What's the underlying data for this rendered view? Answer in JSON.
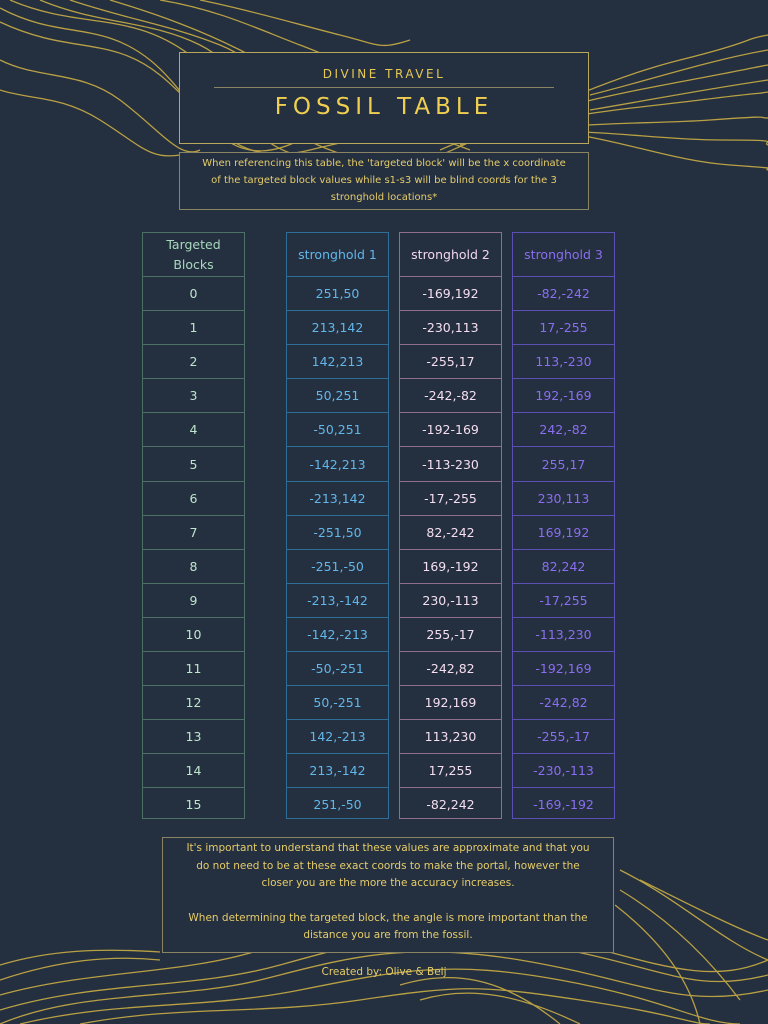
{
  "header": {
    "subtitle": "DIVINE TRAVEL",
    "title": "FOSSIL TABLE"
  },
  "intro": {
    "line1": "When referencing this table, the 'targeted block' will be the x coordinate",
    "line2": "of the targeted block values while s1-s3 will be blind coords for the 3",
    "line3": "stronghold locations*"
  },
  "table": {
    "headers": {
      "blocks_line1": "Targeted",
      "blocks_line2": "Blocks",
      "s1": "stronghold 1",
      "s2": "stronghold 2",
      "s3": "stronghold 3"
    },
    "blocks": [
      "0",
      "1",
      "2",
      "3",
      "4",
      "5",
      "6",
      "7",
      "8",
      "9",
      "10",
      "11",
      "12",
      "13",
      "14",
      "15"
    ],
    "s1": [
      "251,50",
      "213,142",
      "142,213",
      "50,251",
      "-50,251",
      "-142,213",
      "-213,142",
      "-251,50",
      "-251,-50",
      "-213,-142",
      "-142,-213",
      "-50,-251",
      "50,-251",
      "142,-213",
      "213,-142",
      "251,-50"
    ],
    "s2": [
      "-169,192",
      "-230,113",
      "-255,17",
      "-242,-82",
      "-192-169",
      "-113-230",
      "-17,-255",
      "82,-242",
      "169,-192",
      "230,-113",
      "255,-17",
      "-242,82",
      "192,169",
      "113,230",
      "17,255",
      "-82,242"
    ],
    "s3": [
      "-82,-242",
      "17,-255",
      "113,-230",
      "192,-169",
      "242,-82",
      "255,17",
      "230,113",
      "169,192",
      "82,242",
      "-17,255",
      "-113,230",
      "-192,169",
      "-242,82",
      "-255,-17",
      "-230,-113",
      "-169,-192"
    ]
  },
  "note": {
    "p1_line1": "It's important to understand that these values are approximate and that you",
    "p1_line2": "do not need to be at these exact coords to make the portal, however the",
    "p1_line3": "closer you are the more the accuracy increases.",
    "p2_line1": "When determining the targeted block, the angle is more important than the",
    "p2_line2": "distance you are from the fossil."
  },
  "footer": {
    "credit": "Created by: Olive & Belj"
  },
  "colors": {
    "background": "#242f3f",
    "gold": "#e6c955",
    "blocks": "#a9d8bd",
    "stronghold1": "#62b7ea",
    "stronghold2": "#f3d7ee",
    "stronghold3": "#8a6ff0"
  }
}
